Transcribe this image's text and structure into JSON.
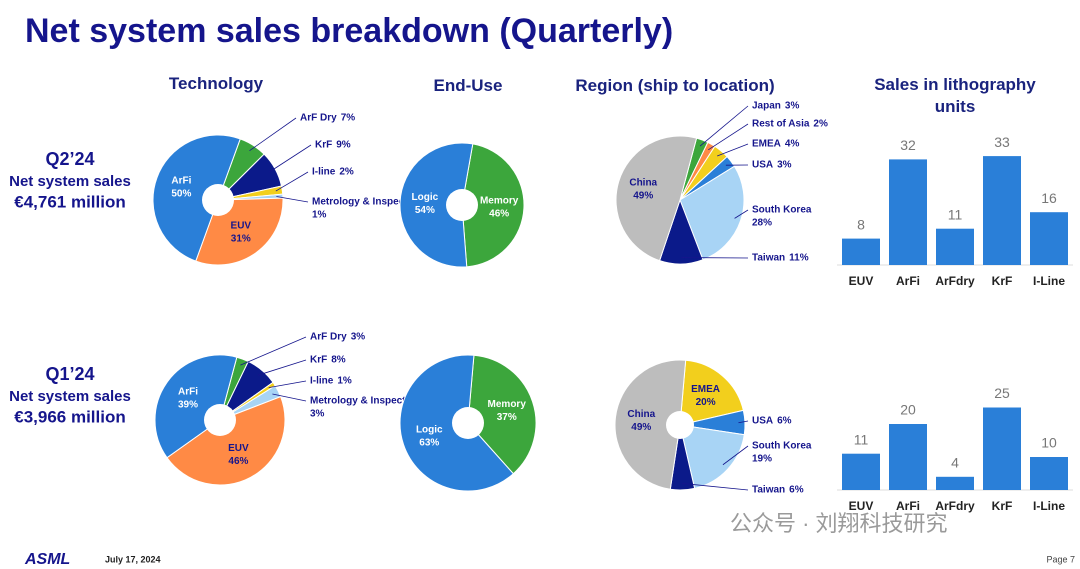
{
  "title": "Net system sales breakdown (Quarterly)",
  "column_headers": [
    "Technology",
    "End-Use",
    "Region (ship to location)",
    "Sales in lithography units"
  ],
  "rows": [
    {
      "quarter": "Q2’24",
      "label": "Net system sales",
      "amount": "€4,761 million"
    },
    {
      "quarter": "Q1’24",
      "label": "Net system sales",
      "amount": "€3,966 million"
    }
  ],
  "footer": {
    "logo": "ASML",
    "date": "July 17, 2024",
    "page": "Page 7"
  },
  "watermark": "公众号 · 刘翔科技研究",
  "chart_data": [
    {
      "type": "pie",
      "categories": [
        "ArF Dry",
        "KrF",
        "I-line",
        "Metrology & Inspection",
        "EUV",
        "ArFi"
      ],
      "values": [
        7,
        9,
        2,
        1,
        31,
        50
      ],
      "value_labels": [
        "7%",
        "9%",
        "2%",
        "1%",
        "31%",
        "50%"
      ],
      "colors": [
        "#3ca63c",
        "#0b1a8a",
        "#f2cf1d",
        "#a8d4f5",
        "#ff8a45",
        "#2a7fd8"
      ]
    },
    {
      "type": "pie",
      "categories": [
        "Memory",
        "Logic"
      ],
      "values": [
        46,
        54
      ],
      "value_labels": [
        "46%",
        "54%"
      ],
      "colors": [
        "#3ca63c",
        "#2a7fd8"
      ]
    },
    {
      "type": "pie",
      "categories": [
        "Japan",
        "Rest of Asia",
        "EMEA",
        "USA",
        "South Korea",
        "Taiwan",
        "China"
      ],
      "values": [
        3,
        2,
        4,
        3,
        28,
        11,
        49
      ],
      "value_labels": [
        "3%",
        "2%",
        "4%",
        "3%",
        "28%",
        "11%",
        "49%"
      ],
      "colors": [
        "#3ca63c",
        "#ff8a45",
        "#f2cf1d",
        "#2a7fd8",
        "#a8d4f5",
        "#0b1a8a",
        "#bdbdbd"
      ]
    },
    {
      "type": "bar",
      "categories": [
        "EUV",
        "ArFi",
        "ArFdry",
        "KrF",
        "I-Line"
      ],
      "values": [
        8,
        32,
        11,
        33,
        16
      ],
      "color": "#2a7fd8"
    },
    {
      "type": "pie",
      "categories": [
        "ArF Dry",
        "KrF",
        "I-line",
        "Metrology & Inspection",
        "EUV",
        "ArFi"
      ],
      "values": [
        3,
        8,
        1,
        3,
        46,
        39
      ],
      "value_labels": [
        "3%",
        "8%",
        "1%",
        "3%",
        "46%",
        "39%"
      ],
      "colors": [
        "#3ca63c",
        "#0b1a8a",
        "#f2cf1d",
        "#a8d4f5",
        "#ff8a45",
        "#2a7fd8"
      ]
    },
    {
      "type": "pie",
      "categories": [
        "Memory",
        "Logic"
      ],
      "values": [
        37,
        63
      ],
      "value_labels": [
        "37%",
        "63%"
      ],
      "colors": [
        "#3ca63c",
        "#2a7fd8"
      ]
    },
    {
      "type": "pie",
      "categories": [
        "EMEA",
        "USA",
        "South Korea",
        "Taiwan",
        "China"
      ],
      "values": [
        20,
        6,
        19,
        6,
        49
      ],
      "value_labels": [
        "20%",
        "6%",
        "19%",
        "6%",
        "49%"
      ],
      "colors": [
        "#f2cf1d",
        "#2a7fd8",
        "#a8d4f5",
        "#0b1a8a",
        "#bdbdbd"
      ]
    },
    {
      "type": "bar",
      "categories": [
        "EUV",
        "ArFi",
        "ArFdry",
        "KrF",
        "I-Line"
      ],
      "values": [
        11,
        20,
        4,
        25,
        10
      ],
      "color": "#2a7fd8"
    }
  ]
}
